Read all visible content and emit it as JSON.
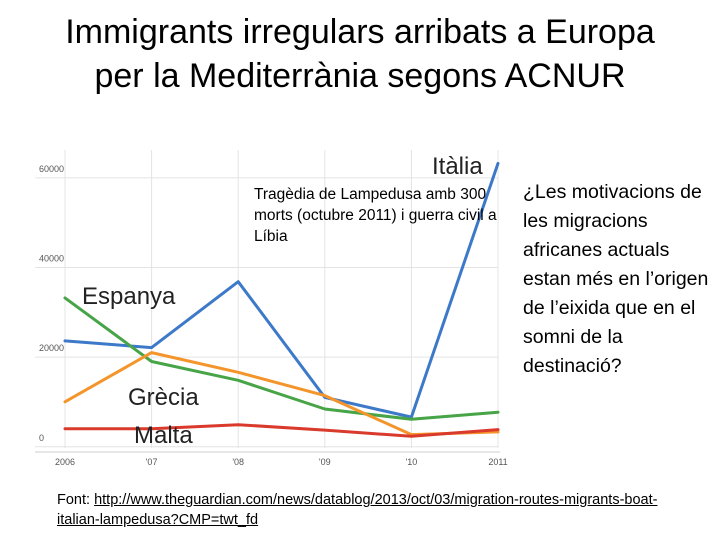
{
  "title": {
    "line1": "Immigrants irregulars arribats a Europa",
    "line2": "per la Mediterrània segons ACNUR"
  },
  "annotation": "Tragèdia de Lampedusa amb 300 morts (octubre 2011) i guerra civil a Líbia",
  "question": "¿Les motivacions de les migracions africanes actuals estan més en l’origen de l’eixida que en el somni de la destinació?",
  "source": {
    "label": "Font: ",
    "link": "http://www.theguardian.com/news/datablog/2013/oct/03/migration-routes-migrants-boat-italian-lampedusa?CMP=twt_fd"
  },
  "chart_data": {
    "type": "line",
    "x": [
      "2006",
      "'07",
      "'08",
      "'09",
      "'10",
      "2011"
    ],
    "yticks": [
      0,
      20000,
      40000,
      60000
    ],
    "ytick_labels": [
      "0",
      "20000",
      "40000",
      "60000"
    ],
    "ylim": [
      -2500,
      64000
    ],
    "grid": true,
    "series": [
      {
        "name": "Itàlia",
        "color": "#3d79c9",
        "values": [
          21400,
          19900,
          34600,
          8800,
          4400,
          61000
        ]
      },
      {
        "name": "Espanya",
        "color": "#47a447",
        "values": [
          31000,
          16800,
          12600,
          6200,
          3900,
          5500
        ]
      },
      {
        "name": "Grècia",
        "color": "#f4952b",
        "values": [
          7800,
          18800,
          14400,
          9200,
          500,
          1100
        ]
      },
      {
        "name": "Malta",
        "color": "#d93a2b",
        "values": [
          1800,
          1800,
          2700,
          1500,
          100,
          1600
        ]
      }
    ]
  }
}
